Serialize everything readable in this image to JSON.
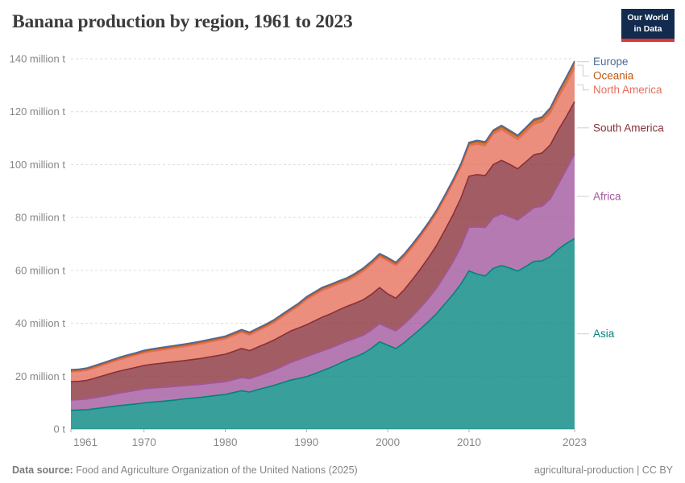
{
  "header": {
    "title": "Banana production by region, 1961 to 2023",
    "logo_line1": "Our World",
    "logo_line2": "in Data"
  },
  "chart_data": {
    "type": "area",
    "stacked": true,
    "title": "Banana production by region, 1961 to 2023",
    "xlabel": "",
    "ylabel": "",
    "ylim": [
      0,
      140
    ],
    "grid": true,
    "legend_position": "right",
    "unit": "million t",
    "x": [
      1961,
      1962,
      1963,
      1964,
      1965,
      1966,
      1967,
      1968,
      1969,
      1970,
      1971,
      1972,
      1973,
      1974,
      1975,
      1976,
      1977,
      1978,
      1979,
      1980,
      1981,
      1982,
      1983,
      1984,
      1985,
      1986,
      1987,
      1988,
      1989,
      1990,
      1991,
      1992,
      1993,
      1994,
      1995,
      1996,
      1997,
      1998,
      1999,
      2000,
      2001,
      2002,
      2003,
      2004,
      2005,
      2006,
      2007,
      2008,
      2009,
      2010,
      2011,
      2012,
      2013,
      2014,
      2015,
      2016,
      2017,
      2018,
      2019,
      2020,
      2021,
      2022,
      2023
    ],
    "xticks": [
      "1961",
      "1970",
      "1980",
      "1990",
      "2000",
      "2010",
      "2023"
    ],
    "xtick_years": [
      1961,
      1970,
      1980,
      1990,
      2000,
      2010,
      2023
    ],
    "yticks": [
      {
        "value": 0,
        "label": "0 t"
      },
      {
        "value": 20,
        "label": "20 million t"
      },
      {
        "value": 40,
        "label": "40 million t"
      },
      {
        "value": 60,
        "label": "60 million t"
      },
      {
        "value": 80,
        "label": "80 million t"
      },
      {
        "value": 100,
        "label": "100 million t"
      },
      {
        "value": 120,
        "label": "120 million t"
      },
      {
        "value": 140,
        "label": "140 million t"
      }
    ],
    "series": [
      {
        "name": "Asia",
        "color": "#00847E",
        "values": [
          7.1,
          7.2,
          7.35,
          7.7,
          8.1,
          8.5,
          8.9,
          9.2,
          9.5,
          9.9,
          10.2,
          10.45,
          10.7,
          11.05,
          11.4,
          11.7,
          12.0,
          12.4,
          12.75,
          13.1,
          13.8,
          14.5,
          14.0,
          14.9,
          15.7,
          16.5,
          17.5,
          18.5,
          19.1,
          19.8,
          20.9,
          22.1,
          23.3,
          24.7,
          26.1,
          27.3,
          28.6,
          30.6,
          33.0,
          31.7,
          30.4,
          32.6,
          35.2,
          37.8,
          40.6,
          43.6,
          47.2,
          50.8,
          54.8,
          59.8,
          58.6,
          57.9,
          60.8,
          61.8,
          60.9,
          59.7,
          61.5,
          63.4,
          63.6,
          65.2,
          68.0,
          70.2,
          72.0
        ]
      },
      {
        "name": "Africa",
        "color": "#A2559C",
        "values": [
          3.9,
          3.95,
          4.0,
          4.15,
          4.3,
          4.5,
          4.7,
          4.9,
          5.1,
          5.3,
          5.3,
          5.25,
          5.2,
          5.1,
          5.0,
          4.95,
          4.9,
          4.85,
          4.8,
          4.8,
          4.85,
          4.95,
          5.05,
          5.2,
          5.45,
          5.75,
          6.15,
          6.6,
          7.1,
          7.6,
          7.6,
          7.5,
          7.4,
          7.3,
          7.1,
          7.0,
          6.9,
          6.85,
          6.8,
          6.7,
          6.7,
          7.0,
          7.4,
          8.0,
          8.7,
          9.6,
          10.8,
          12.2,
          14.0,
          16.5,
          17.8,
          18.3,
          19.2,
          19.6,
          19.4,
          19.3,
          19.8,
          20.3,
          20.6,
          21.8,
          24.5,
          28.0,
          32.0
        ]
      },
      {
        "name": "South America",
        "color": "#883039",
        "values": [
          6.9,
          6.9,
          7.1,
          7.45,
          7.8,
          8.1,
          8.35,
          8.55,
          8.7,
          8.85,
          9.0,
          9.15,
          9.3,
          9.4,
          9.5,
          9.65,
          9.8,
          10.0,
          10.2,
          10.4,
          10.7,
          11.0,
          10.6,
          10.9,
          11.1,
          11.4,
          11.7,
          11.9,
          12.0,
          12.0,
          12.4,
          12.8,
          12.9,
          13.1,
          13.2,
          13.3,
          13.4,
          13.5,
          13.7,
          12.7,
          12.4,
          13.0,
          13.8,
          14.6,
          15.4,
          16.2,
          17.0,
          17.8,
          18.5,
          19.3,
          19.8,
          19.6,
          20.0,
          20.2,
          19.8,
          19.4,
          19.7,
          20.0,
          20.2,
          20.4,
          20.6,
          20.0,
          19.8
        ]
      },
      {
        "name": "North America",
        "color": "#E56E5A",
        "values": [
          3.7,
          3.75,
          3.8,
          3.9,
          4.0,
          4.15,
          4.3,
          4.45,
          4.6,
          4.75,
          4.85,
          4.95,
          5.05,
          5.15,
          5.25,
          5.35,
          5.5,
          5.6,
          5.7,
          5.8,
          5.95,
          6.1,
          5.9,
          6.1,
          6.3,
          6.6,
          7.0,
          7.4,
          8.2,
          9.5,
          9.8,
          10.1,
          10.0,
          9.8,
          9.6,
          10.1,
          10.8,
          11.3,
          11.6,
          12.5,
          12.3,
          12.3,
          12.2,
          12.2,
          12.1,
          12.1,
          12.0,
          12.0,
          11.7,
          11.4,
          11.5,
          11.3,
          11.5,
          11.6,
          11.2,
          11.0,
          11.3,
          11.6,
          11.8,
          12.0,
          12.2,
          12.5,
          12.7
        ]
      },
      {
        "name": "Oceania",
        "color": "#BE5915",
        "values": [
          0.55,
          0.55,
          0.57,
          0.58,
          0.6,
          0.6,
          0.62,
          0.63,
          0.63,
          0.64,
          0.65,
          0.65,
          0.66,
          0.66,
          0.67,
          0.67,
          0.68,
          0.68,
          0.69,
          0.7,
          0.7,
          0.7,
          0.71,
          0.72,
          0.72,
          0.73,
          0.74,
          0.74,
          0.75,
          0.76,
          0.77,
          0.78,
          0.78,
          0.79,
          0.8,
          0.8,
          0.81,
          0.81,
          0.82,
          0.82,
          0.83,
          0.83,
          0.84,
          0.84,
          0.85,
          0.86,
          0.86,
          0.87,
          0.9,
          0.95,
          1.0,
          1.05,
          1.1,
          1.15,
          1.2,
          1.25,
          1.3,
          1.35,
          1.4,
          1.6,
          1.8,
          2.0,
          2.1
        ]
      },
      {
        "name": "Europe",
        "color": "#4C6A9C",
        "values": [
          0.3,
          0.3,
          0.3,
          0.31,
          0.31,
          0.32,
          0.32,
          0.32,
          0.33,
          0.33,
          0.33,
          0.34,
          0.34,
          0.34,
          0.35,
          0.35,
          0.35,
          0.35,
          0.36,
          0.36,
          0.36,
          0.37,
          0.37,
          0.37,
          0.38,
          0.38,
          0.38,
          0.39,
          0.39,
          0.39,
          0.4,
          0.4,
          0.4,
          0.41,
          0.41,
          0.41,
          0.42,
          0.42,
          0.42,
          0.43,
          0.43,
          0.43,
          0.44,
          0.44,
          0.44,
          0.45,
          0.45,
          0.45,
          0.46,
          0.46,
          0.46,
          0.47,
          0.47,
          0.47,
          0.48,
          0.48,
          0.48,
          0.49,
          0.49,
          0.49,
          0.5,
          0.52,
          0.55
        ]
      }
    ],
    "legend_order_top_to_bottom": [
      "Europe",
      "Oceania",
      "North America",
      "South America",
      "Africa",
      "Asia"
    ]
  },
  "footer": {
    "source_label": "Data source:",
    "source_text": " Food and Agriculture Organization of the United Nations (2025)",
    "right_text": "agricultural-production | CC BY"
  },
  "colors": {
    "accent_navy": "#122b4e",
    "accent_red": "#d7383c",
    "gridline": "#dcdcdc",
    "axis": "#b0b0b0",
    "tick_label": "#878787",
    "connector": "#cfcfcf"
  }
}
